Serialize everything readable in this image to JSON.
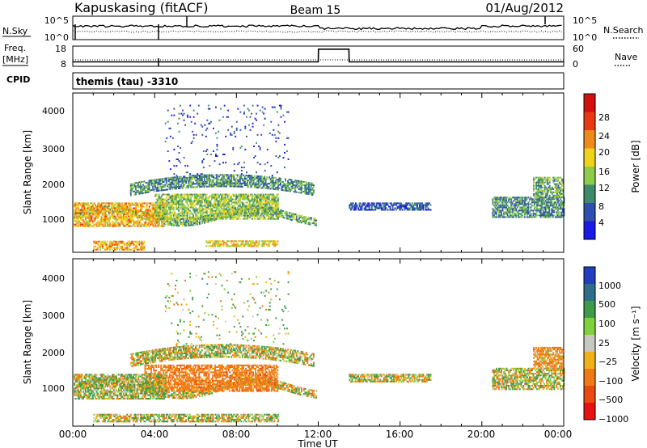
{
  "header": {
    "station": "Kapuskasing (fitACF)",
    "beam": "Beam 15",
    "date": "01/Aug/2012"
  },
  "noise_panel": {
    "left_label": "N.Sky",
    "left_ticks": [
      "10^5",
      "10^0"
    ],
    "right_ticks": [
      "10^5",
      "10^0"
    ],
    "right_label": "N.Search"
  },
  "freq_panel": {
    "left_label_1": "Freq.",
    "left_label_2": "[MHz]",
    "left_ticks": [
      "18",
      "8"
    ],
    "right_ticks": [
      "60",
      "0"
    ],
    "right_label": "Nave"
  },
  "cpid_panel": {
    "label": "CPID",
    "value": "themis (tau) -3310"
  },
  "x_axis": {
    "label": "Time UT",
    "ticks": [
      "00:00",
      "04:00",
      "08:00",
      "12:00",
      "16:00",
      "20:00",
      "00:00"
    ]
  },
  "power_panel": {
    "ylabel": "Slant Range [km]",
    "yticks": [
      "1000",
      "2000",
      "3000",
      "4000"
    ],
    "colorbar_label": "Power [dB]",
    "colorbar_ticks": [
      "4",
      "8",
      "12",
      "16",
      "20",
      "24",
      "28"
    ]
  },
  "velocity_panel": {
    "ylabel": "Slant Range [km]",
    "yticks": [
      "1000",
      "2000",
      "3000",
      "4000"
    ],
    "colorbar_label": "Velocity [m s⁻¹]",
    "colorbar_ticks": [
      "1000",
      "500",
      "100",
      "25",
      "−25",
      "−100",
      "−500",
      "−1000"
    ]
  },
  "colors": {
    "power_scale": [
      "#1a1ae6",
      "#2f4fb0",
      "#3f8a6a",
      "#8ecb4a",
      "#f0d21a",
      "#f08a1a",
      "#e83a12",
      "#d40f0f"
    ],
    "velocity_scale": [
      "#1f3fbf",
      "#2d6f8a",
      "#3f9a4a",
      "#7fd23a",
      "#c8c8c2",
      "#f0b21a",
      "#f07a14",
      "#e84a12",
      "#e81212"
    ]
  },
  "chart_data": [
    {
      "type": "heatmap",
      "id": "power",
      "x_unit": "hours UT",
      "xlim": [
        0,
        24
      ],
      "ylim": [
        150,
        4550
      ],
      "ylabel": "Slant Range [km]",
      "colorbar_label": "Power [dB]",
      "value_range": [
        0,
        30
      ],
      "regions": [
        {
          "t0": 0.05,
          "t1": 11.9,
          "r_lo": 1040,
          "r_hi": 1230,
          "curve": "sine",
          "amp": 180,
          "period": 7,
          "db": 12
        },
        {
          "t0": 2.8,
          "t1": 11.8,
          "r_lo": 1700,
          "r_hi": 2050,
          "curve": "arc",
          "amp": 250,
          "period": 9,
          "db": 10
        },
        {
          "t0": 0.05,
          "t1": 4.5,
          "r_lo": 850,
          "r_hi": 1500,
          "curve": "flat",
          "amp": 0,
          "period": 1,
          "db": 20
        },
        {
          "t0": 4.0,
          "t1": 10.0,
          "r_lo": 1050,
          "r_hi": 1750,
          "curve": "flat",
          "amp": 0,
          "period": 1,
          "db": 14
        },
        {
          "t0": 1.0,
          "t1": 3.5,
          "r_lo": 200,
          "r_hi": 450,
          "curve": "flat",
          "amp": 0,
          "period": 1,
          "db": 20
        },
        {
          "t0": 6.5,
          "t1": 10.0,
          "r_lo": 300,
          "r_hi": 450,
          "curve": "flat",
          "amp": 0,
          "period": 1,
          "db": 18
        },
        {
          "t0": 13.5,
          "t1": 17.5,
          "r_lo": 1300,
          "r_hi": 1500,
          "curve": "flat",
          "amp": 0,
          "period": 1,
          "db": 6
        },
        {
          "t0": 20.5,
          "t1": 23.99,
          "r_lo": 1100,
          "r_hi": 1650,
          "curve": "flat",
          "amp": 0,
          "period": 1,
          "db": 10
        },
        {
          "t0": 22.5,
          "t1": 23.99,
          "r_lo": 1650,
          "r_hi": 2200,
          "curve": "flat",
          "amp": 0,
          "period": 1,
          "db": 12
        },
        {
          "t0": 4.5,
          "t1": 10.5,
          "r_lo": 2200,
          "r_hi": 4200,
          "curve": "flat",
          "amp": 0,
          "period": 1,
          "db": 5
        }
      ]
    },
    {
      "type": "heatmap",
      "id": "velocity",
      "x_unit": "hours UT",
      "xlim": [
        0,
        24
      ],
      "ylim": [
        150,
        4550
      ],
      "ylabel": "Slant Range [km]",
      "colorbar_label": "Velocity [m s⁻¹]",
      "value_range": [
        -1000,
        1000
      ],
      "regions": [
        {
          "t0": 0.05,
          "t1": 11.9,
          "r_lo": 1040,
          "r_hi": 1230,
          "curve": "sine",
          "amp": 180,
          "period": 7,
          "vel": 0
        },
        {
          "t0": 2.8,
          "t1": 11.8,
          "r_lo": 1700,
          "r_hi": 2050,
          "curve": "arc",
          "amp": 250,
          "period": 9,
          "vel": 0
        },
        {
          "t0": 3.5,
          "t1": 10.0,
          "r_lo": 1050,
          "r_hi": 1750,
          "curve": "flat",
          "amp": 0,
          "period": 1,
          "vel": -300
        },
        {
          "t0": 0.05,
          "t1": 4.5,
          "r_lo": 850,
          "r_hi": 1500,
          "curve": "flat",
          "amp": 0,
          "period": 1,
          "vel": 50
        },
        {
          "t0": 1.0,
          "t1": 10.0,
          "r_lo": 250,
          "r_hi": 450,
          "curve": "flat",
          "amp": 0,
          "period": 1,
          "vel": 0
        },
        {
          "t0": 13.5,
          "t1": 17.5,
          "r_lo": 1300,
          "r_hi": 1500,
          "curve": "flat",
          "amp": 0,
          "period": 1,
          "vel": 0
        },
        {
          "t0": 20.5,
          "t1": 23.99,
          "r_lo": 1100,
          "r_hi": 1650,
          "curve": "flat",
          "amp": 0,
          "period": 1,
          "vel": 0
        },
        {
          "t0": 22.5,
          "t1": 23.99,
          "r_lo": 1650,
          "r_hi": 2200,
          "curve": "flat",
          "amp": 0,
          "period": 1,
          "vel": -200
        },
        {
          "t0": 4.5,
          "t1": 10.5,
          "r_lo": 2200,
          "r_hi": 4200,
          "curve": "flat",
          "amp": 0,
          "period": 1,
          "vel": 80
        }
      ]
    },
    {
      "type": "line",
      "id": "frequency",
      "x": [
        0,
        12.0,
        12.01,
        13.5,
        13.51,
        24
      ],
      "y": [
        10.2,
        10.2,
        16.5,
        16.5,
        10.2,
        10.2
      ],
      "ylim": [
        8,
        18
      ]
    }
  ]
}
